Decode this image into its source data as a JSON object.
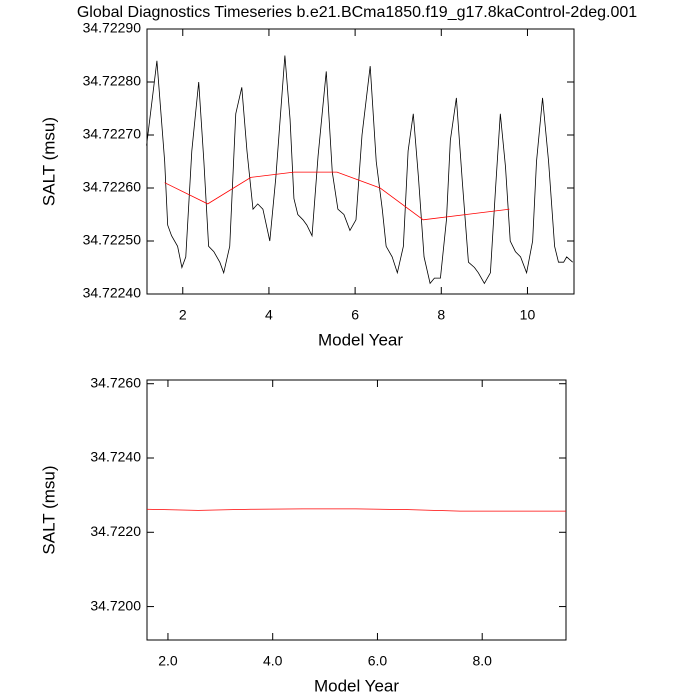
{
  "chart_data": [
    {
      "type": "line",
      "title": "Global Diagnostics Timeseries b.e21.BCma1850.f19_g17.8kaControl-2deg.001",
      "x_label": "Model Year",
      "y_label": "SALT (msu)",
      "xlim": [
        1.17,
        11.08
      ],
      "ylim": [
        34.7224,
        34.7229
      ],
      "xticks": [
        2,
        4,
        6,
        8,
        10
      ],
      "yticks": [
        {
          "value": 34.7224,
          "label": "34.72240"
        },
        {
          "value": 34.7225,
          "label": "34.72250"
        },
        {
          "value": 34.7226,
          "label": "34.72260"
        },
        {
          "value": 34.7227,
          "label": "34.72270"
        },
        {
          "value": 34.7228,
          "label": "34.72280"
        },
        {
          "value": 34.7229,
          "label": "34.72290"
        }
      ],
      "series": [
        {
          "color": "#000000",
          "x": [
            1.16,
            1.4,
            1.58,
            1.65,
            1.74,
            1.88,
            1.98,
            2.07,
            2.21,
            2.37,
            2.49,
            2.6,
            2.72,
            2.86,
            2.95,
            3.09,
            3.23,
            3.37,
            3.49,
            3.63,
            3.74,
            3.86,
            4.02,
            4.16,
            4.37,
            4.49,
            4.58,
            4.67,
            4.79,
            4.88,
            5.0,
            5.14,
            5.33,
            5.47,
            5.6,
            5.74,
            5.88,
            6.02,
            6.16,
            6.35,
            6.49,
            6.63,
            6.72,
            6.86,
            6.98,
            7.12,
            7.23,
            7.35,
            7.47,
            7.6,
            7.74,
            7.84,
            7.98,
            8.12,
            8.21,
            8.35,
            8.49,
            8.63,
            8.77,
            8.86,
            9.0,
            9.14,
            9.26,
            9.37,
            9.49,
            9.6,
            9.72,
            9.84,
            9.98,
            10.12,
            10.21,
            10.35,
            10.49,
            10.63,
            10.72,
            10.84,
            10.91,
            11.05
          ],
          "values": [
            34.72268,
            34.72284,
            34.72265,
            34.72253,
            34.72251,
            34.72249,
            34.72245,
            34.72247,
            34.72267,
            34.7228,
            34.72265,
            34.72249,
            34.72248,
            34.72246,
            34.72244,
            34.72249,
            34.72274,
            34.72279,
            34.72267,
            34.72256,
            34.72257,
            34.72256,
            34.7225,
            34.72262,
            34.72285,
            34.72273,
            34.72258,
            34.72255,
            34.72254,
            34.72253,
            34.72251,
            34.72266,
            34.72282,
            34.72263,
            34.72256,
            34.72255,
            34.72252,
            34.72254,
            34.7227,
            34.72283,
            34.72265,
            34.72256,
            34.72249,
            34.72247,
            34.72244,
            34.72249,
            34.72267,
            34.72274,
            34.72262,
            34.72247,
            34.72242,
            34.72243,
            34.72243,
            34.72254,
            34.72269,
            34.72277,
            34.72261,
            34.72246,
            34.72245,
            34.72244,
            34.72242,
            34.72244,
            34.7226,
            34.72274,
            34.72264,
            34.7225,
            34.72248,
            34.72247,
            34.72244,
            34.7225,
            34.72265,
            34.72277,
            34.72265,
            34.72249,
            34.72246,
            34.72246,
            34.72247,
            34.72246
          ]
        },
        {
          "color": "#ff0000",
          "x": [
            1.58,
            2.58,
            3.58,
            4.58,
            5.58,
            6.58,
            7.58,
            8.58,
            9.58
          ],
          "values": [
            34.72261,
            34.72257,
            34.72262,
            34.72263,
            34.72263,
            34.7226,
            34.72254,
            34.72255,
            34.72256
          ]
        }
      ]
    },
    {
      "type": "line",
      "x_label": "Model Year",
      "y_label": "SALT (msu)",
      "xlim": [
        1.6,
        9.6
      ],
      "ylim": [
        34.7191,
        34.7261
      ],
      "xticks": [
        {
          "value": 2,
          "label": "2.0"
        },
        {
          "value": 4,
          "label": "4.0"
        },
        {
          "value": 6,
          "label": "6.0"
        },
        {
          "value": 8,
          "label": "8.0"
        }
      ],
      "yticks": [
        {
          "value": 34.72,
          "label": "34.7200"
        },
        {
          "value": 34.722,
          "label": "34.7220"
        },
        {
          "value": 34.724,
          "label": "34.7240"
        },
        {
          "value": 34.726,
          "label": "34.7260"
        }
      ],
      "series": [
        {
          "color": "#ff0000",
          "x": [
            1.6,
            2.58,
            3.58,
            4.58,
            5.58,
            6.58,
            7.58,
            8.58,
            9.6
          ],
          "values": [
            34.72262,
            34.72259,
            34.72262,
            34.72263,
            34.72263,
            34.72261,
            34.72257,
            34.72257,
            34.72257
          ]
        }
      ]
    }
  ]
}
